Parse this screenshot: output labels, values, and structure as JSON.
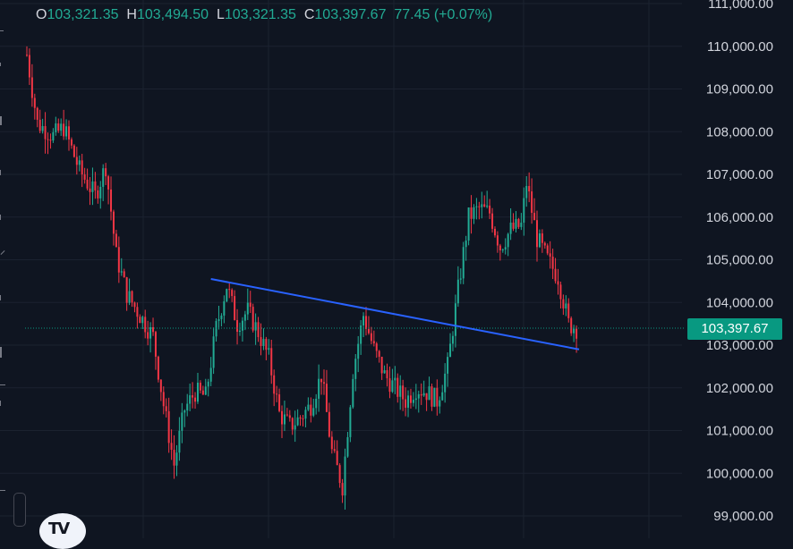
{
  "ohlc": {
    "o_label": "O",
    "o": "103,321.35",
    "h_label": "H",
    "h": "103,494.50",
    "l_label": "L",
    "l": "103,321.35",
    "c_label": "C",
    "c": "103,397.67",
    "change": "77.45 (+0.07%)"
  },
  "last_price": "103,397.67",
  "logo_text": "TV",
  "colors": {
    "up": "#22ab94",
    "down": "#f23645",
    "trendline": "#2962ff",
    "background": "#0f1521",
    "price_tag": "#089981"
  },
  "chart_data": {
    "type": "candlestick",
    "title": "",
    "ylim": [
      98800,
      111200
    ],
    "y_ticks": [
      {
        "value": 111000,
        "label": "111,000.00"
      },
      {
        "value": 110000,
        "label": "110,000.00"
      },
      {
        "value": 109000,
        "label": "109,000.00"
      },
      {
        "value": 108000,
        "label": "108,000.00"
      },
      {
        "value": 107000,
        "label": "107,000.00"
      },
      {
        "value": 106000,
        "label": "106,000.00"
      },
      {
        "value": 105000,
        "label": "105,000.00"
      },
      {
        "value": 104000,
        "label": "104,000.00"
      },
      {
        "value": 103000,
        "label": "103,000.00"
      },
      {
        "value": 102000,
        "label": "102,000.00"
      },
      {
        "value": 101000,
        "label": "101,000.00"
      },
      {
        "value": 100000,
        "label": "100,000.00"
      },
      {
        "value": 99000,
        "label": "99,000.00"
      }
    ],
    "price_path": [
      [
        0,
        109800
      ],
      [
        4,
        108200
      ],
      [
        10,
        107900
      ],
      [
        14,
        108100
      ],
      [
        20,
        107100
      ],
      [
        26,
        106500
      ],
      [
        30,
        107200
      ],
      [
        34,
        105100
      ],
      [
        38,
        104200
      ],
      [
        44,
        103600
      ],
      [
        48,
        103200
      ],
      [
        52,
        101600
      ],
      [
        56,
        100200
      ],
      [
        60,
        101500
      ],
      [
        64,
        101900
      ],
      [
        68,
        101800
      ],
      [
        72,
        103400
      ],
      [
        76,
        104400
      ],
      [
        80,
        103500
      ],
      [
        84,
        103800
      ],
      [
        88,
        103300
      ],
      [
        92,
        102700
      ],
      [
        96,
        101400
      ],
      [
        100,
        101100
      ],
      [
        104,
        101300
      ],
      [
        108,
        101600
      ],
      [
        112,
        102300
      ],
      [
        116,
        100500
      ],
      [
        120,
        99700
      ],
      [
        124,
        102400
      ],
      [
        128,
        103700
      ],
      [
        132,
        102900
      ],
      [
        136,
        102300
      ],
      [
        140,
        102000
      ],
      [
        144,
        101700
      ],
      [
        148,
        102000
      ],
      [
        152,
        101900
      ],
      [
        156,
        101700
      ],
      [
        160,
        102500
      ],
      [
        164,
        104300
      ],
      [
        168,
        106000
      ],
      [
        172,
        106200
      ],
      [
        176,
        106100
      ],
      [
        180,
        105300
      ],
      [
        184,
        105700
      ],
      [
        188,
        105800
      ],
      [
        190,
        106800
      ],
      [
        194,
        105500
      ],
      [
        198,
        105000
      ],
      [
        202,
        104600
      ],
      [
        206,
        103500
      ],
      [
        209,
        103400
      ]
    ],
    "trendline": {
      "x1": 70,
      "y1": 104550,
      "x2": 210,
      "y2": 102900
    },
    "last_price_value": 103397.67
  }
}
